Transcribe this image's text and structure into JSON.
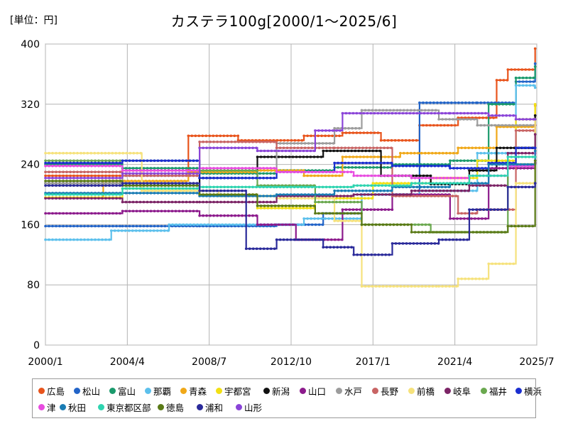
{
  "unit_label": "[単位：円]",
  "chart_data": {
    "type": "line",
    "title": "カステラ100g[2000/1～2025/6]",
    "xlabel": "",
    "ylabel": "",
    "x_range": [
      "2000/1",
      "2025/7"
    ],
    "x_ticks": [
      "2000/1",
      "2004/4",
      "2008/7",
      "2012/10",
      "2017/1",
      "2021/4",
      "2025/7"
    ],
    "ylim": [
      0,
      400
    ],
    "y_ticks": [
      0,
      80,
      160,
      240,
      320,
      400
    ],
    "grid": true,
    "legend_position": "bottom",
    "series": [
      {
        "name": "広島",
        "color": "#e8541c",
        "points": [
          [
            "2000/1",
            225
          ],
          [
            "2004/1",
            232
          ],
          [
            "2007/6",
            278
          ],
          [
            "2010/1",
            272
          ],
          [
            "2013/6",
            278
          ],
          [
            "2015/6",
            282
          ],
          [
            "2017/6",
            272
          ],
          [
            "2019/6",
            292
          ],
          [
            "2021/6",
            302
          ],
          [
            "2023/6",
            352
          ],
          [
            "2024/1",
            366
          ],
          [
            "2025/6",
            394
          ]
        ]
      },
      {
        "name": "松山",
        "color": "#2264c8",
        "points": [
          [
            "2000/1",
            158
          ],
          [
            "2004/1",
            158
          ],
          [
            "2008/1",
            158
          ],
          [
            "2012/1",
            160
          ],
          [
            "2014/6",
            175
          ],
          [
            "2016/6",
            200
          ],
          [
            "2019/6",
            322
          ],
          [
            "2022/6",
            322
          ],
          [
            "2024/6",
            350
          ],
          [
            "2025/6",
            374
          ]
        ]
      },
      {
        "name": "富山",
        "color": "#1a9a6c",
        "points": [
          [
            "2000/1",
            240
          ],
          [
            "2004/1",
            235
          ],
          [
            "2008/1",
            228
          ],
          [
            "2012/1",
            232
          ],
          [
            "2015/1",
            236
          ],
          [
            "2018/1",
            240
          ],
          [
            "2021/1",
            245
          ],
          [
            "2023/1",
            320
          ],
          [
            "2024/6",
            355
          ],
          [
            "2025/6",
            370
          ]
        ]
      },
      {
        "name": "那覇",
        "color": "#5cc0ec",
        "points": [
          [
            "2000/1",
            140
          ],
          [
            "2003/6",
            152
          ],
          [
            "2006/6",
            160
          ],
          [
            "2010/6",
            160
          ],
          [
            "2013/6",
            168
          ],
          [
            "2016/6",
            200
          ],
          [
            "2019/6",
            205
          ],
          [
            "2022/6",
            255
          ],
          [
            "2024/6",
            345
          ],
          [
            "2025/6",
            342
          ]
        ]
      },
      {
        "name": "青森",
        "color": "#f0a818",
        "points": [
          [
            "2000/1",
            196
          ],
          [
            "2003/1",
            218
          ],
          [
            "2007/6",
            230
          ],
          [
            "2011/1",
            232
          ],
          [
            "2013/6",
            225
          ],
          [
            "2015/6",
            250
          ],
          [
            "2018/6",
            255
          ],
          [
            "2021/6",
            262
          ],
          [
            "2023/6",
            290
          ],
          [
            "2025/6",
            318
          ]
        ]
      },
      {
        "name": "宇都宮",
        "color": "#f2e014",
        "points": [
          [
            "2000/1",
            196
          ],
          [
            "2004/1",
            208
          ],
          [
            "2008/1",
            200
          ],
          [
            "2011/1",
            182
          ],
          [
            "2014/1",
            195
          ],
          [
            "2017/1",
            215
          ],
          [
            "2020/1",
            222
          ],
          [
            "2022/6",
            245
          ],
          [
            "2024/6",
            300
          ],
          [
            "2025/6",
            320
          ]
        ]
      },
      {
        "name": "新潟",
        "color": "#111111",
        "points": [
          [
            "2000/1",
            215
          ],
          [
            "2004/1",
            212
          ],
          [
            "2008/1",
            222
          ],
          [
            "2011/1",
            250
          ],
          [
            "2014/6",
            258
          ],
          [
            "2017/6",
            225
          ],
          [
            "2020/1",
            214
          ],
          [
            "2022/1",
            232
          ],
          [
            "2023/6",
            262
          ],
          [
            "2025/6",
            305
          ]
        ]
      },
      {
        "name": "山口",
        "color": "#8c1a8c",
        "points": [
          [
            "2000/1",
            175
          ],
          [
            "2004/1",
            178
          ],
          [
            "2008/1",
            172
          ],
          [
            "2011/1",
            160
          ],
          [
            "2013/1",
            140
          ],
          [
            "2015/6",
            180
          ],
          [
            "2018/1",
            200
          ],
          [
            "2021/1",
            168
          ],
          [
            "2023/1",
            235
          ],
          [
            "2025/6",
            242
          ]
        ]
      },
      {
        "name": "水戸",
        "color": "#9c9c9c",
        "points": [
          [
            "2000/1",
            215
          ],
          [
            "2004/1",
            225
          ],
          [
            "2008/1",
            222
          ],
          [
            "2012/1",
            268
          ],
          [
            "2015/1",
            288
          ],
          [
            "2016/6",
            312
          ],
          [
            "2018/6",
            312
          ],
          [
            "2020/6",
            300
          ],
          [
            "2022/6",
            292
          ],
          [
            "2025/6",
            300
          ]
        ]
      },
      {
        "name": "長野",
        "color": "#c86464",
        "points": [
          [
            "2000/1",
            230
          ],
          [
            "2004/1",
            225
          ],
          [
            "2008/1",
            270
          ],
          [
            "2012/1",
            262
          ],
          [
            "2015/1",
            262
          ],
          [
            "2018/1",
            198
          ],
          [
            "2021/6",
            175
          ],
          [
            "2022/6",
            180
          ],
          [
            "2024/6",
            285
          ],
          [
            "2025/6",
            292
          ]
        ]
      },
      {
        "name": "前橋",
        "color": "#f6e27c",
        "points": [
          [
            "2000/1",
            255
          ],
          [
            "2002/1",
            255
          ],
          [
            "2005/1",
            205
          ],
          [
            "2009/1",
            198
          ],
          [
            "2012/1",
            195
          ],
          [
            "2015/1",
            165
          ],
          [
            "2016/6",
            78
          ],
          [
            "2020/6",
            78
          ],
          [
            "2021/6",
            88
          ],
          [
            "2023/1",
            108
          ],
          [
            "2024/6",
            215
          ],
          [
            "2025/6",
            300
          ]
        ]
      },
      {
        "name": "岐阜",
        "color": "#7c2466",
        "points": [
          [
            "2000/1",
            195
          ],
          [
            "2004/1",
            190
          ],
          [
            "2008/1",
            190
          ],
          [
            "2012/1",
            198
          ],
          [
            "2016/1",
            200
          ],
          [
            "2019/1",
            205
          ],
          [
            "2022/1",
            212
          ],
          [
            "2024/1",
            255
          ],
          [
            "2025/6",
            280
          ]
        ]
      },
      {
        "name": "福井",
        "color": "#6aa84f",
        "points": [
          [
            "2000/1",
            245
          ],
          [
            "2004/1",
            245
          ],
          [
            "2008/1",
            232
          ],
          [
            "2011/1",
            212
          ],
          [
            "2014/1",
            190
          ],
          [
            "2016/6",
            160
          ],
          [
            "2020/1",
            150
          ],
          [
            "2022/6",
            150
          ],
          [
            "2024/1",
            240
          ],
          [
            "2025/6",
            245
          ]
        ]
      },
      {
        "name": "横浜",
        "color": "#1a2ed0",
        "points": [
          [
            "2000/1",
            242
          ],
          [
            "2004/1",
            245
          ],
          [
            "2008/1",
            222
          ],
          [
            "2012/1",
            230
          ],
          [
            "2015/1",
            242
          ],
          [
            "2018/1",
            238
          ],
          [
            "2021/1",
            235
          ],
          [
            "2023/1",
            242
          ],
          [
            "2024/6",
            262
          ],
          [
            "2025/6",
            262
          ]
        ]
      },
      {
        "name": "津",
        "color": "#e84ce0",
        "points": [
          [
            "2000/1",
            238
          ],
          [
            "2004/1",
            232
          ],
          [
            "2008/1",
            235
          ],
          [
            "2012/1",
            230
          ],
          [
            "2016/1",
            225
          ],
          [
            "2019/1",
            222
          ],
          [
            "2022/1",
            225
          ],
          [
            "2024/1",
            238
          ],
          [
            "2025/6",
            255
          ]
        ]
      },
      {
        "name": "秋田",
        "color": "#1a7cb4",
        "points": [
          [
            "2000/1",
            202
          ],
          [
            "2004/1",
            202
          ],
          [
            "2008/1",
            198
          ],
          [
            "2012/1",
            200
          ],
          [
            "2015/1",
            205
          ],
          [
            "2018/1",
            210
          ],
          [
            "2021/1",
            215
          ],
          [
            "2023/1",
            240
          ],
          [
            "2025/6",
            258
          ]
        ]
      },
      {
        "name": "東京都区部",
        "color": "#2ed4b0",
        "points": [
          [
            "2000/1",
            200
          ],
          [
            "2004/1",
            208
          ],
          [
            "2008/1",
            210
          ],
          [
            "2012/1",
            210
          ],
          [
            "2016/1",
            212
          ],
          [
            "2019/1",
            215
          ],
          [
            "2022/1",
            225
          ],
          [
            "2024/1",
            250
          ],
          [
            "2025/6",
            250
          ]
        ]
      },
      {
        "name": "徳島",
        "color": "#5a7a16",
        "points": [
          [
            "2000/1",
            218
          ],
          [
            "2004/1",
            212
          ],
          [
            "2008/1",
            200
          ],
          [
            "2011/1",
            185
          ],
          [
            "2014/1",
            175
          ],
          [
            "2016/6",
            160
          ],
          [
            "2019/1",
            150
          ],
          [
            "2022/1",
            150
          ],
          [
            "2024/1",
            158
          ],
          [
            "2025/6",
            245
          ]
        ]
      },
      {
        "name": "浦和",
        "color": "#2a2a9a",
        "points": [
          [
            "2000/1",
            212
          ],
          [
            "2004/1",
            215
          ],
          [
            "2008/1",
            205
          ],
          [
            "2010/6",
            128
          ],
          [
            "2012/1",
            140
          ],
          [
            "2014/6",
            130
          ],
          [
            "2016/1",
            120
          ],
          [
            "2018/1",
            135
          ],
          [
            "2020/6",
            140
          ],
          [
            "2022/1",
            180
          ],
          [
            "2024/1",
            210
          ],
          [
            "2025/6",
            215
          ]
        ]
      },
      {
        "name": "山形",
        "color": "#8a44d8",
        "points": [
          [
            "2000/1",
            222
          ],
          [
            "2004/1",
            228
          ],
          [
            "2008/1",
            262
          ],
          [
            "2011/1",
            258
          ],
          [
            "2014/1",
            285
          ],
          [
            "2015/6",
            308
          ],
          [
            "2018/1",
            308
          ],
          [
            "2021/1",
            308
          ],
          [
            "2023/1",
            305
          ],
          [
            "2024/6",
            300
          ],
          [
            "2025/6",
            300
          ]
        ]
      }
    ]
  }
}
